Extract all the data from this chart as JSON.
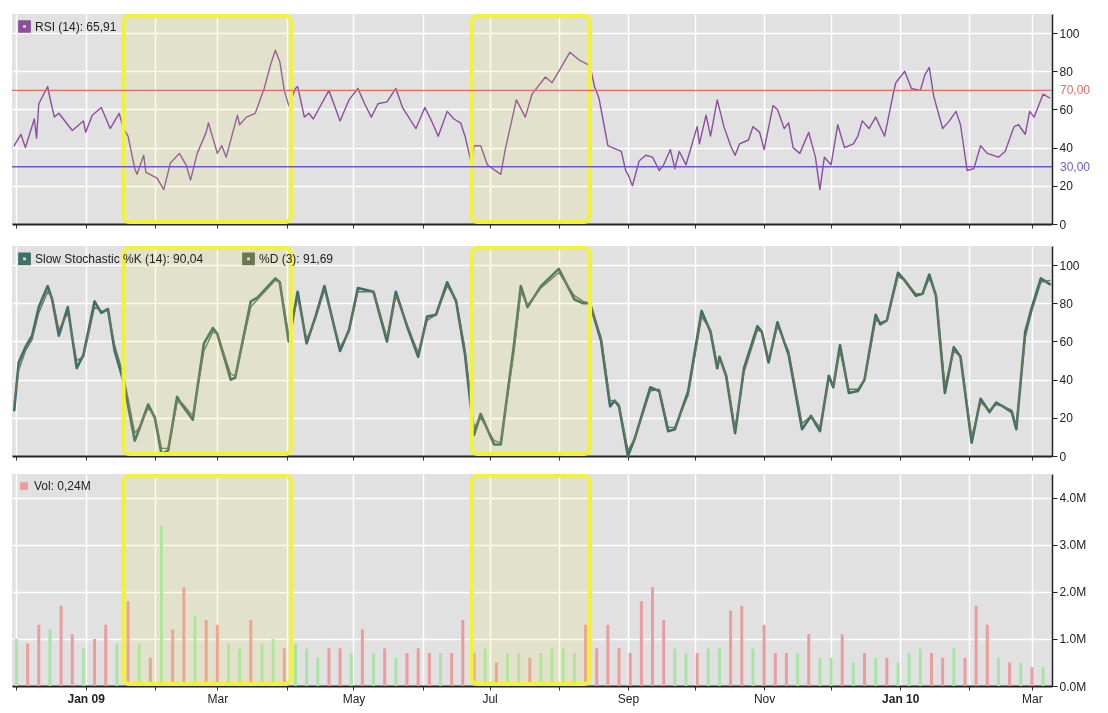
{
  "chart_data": [
    {
      "type": "line",
      "legend": "top left",
      "grid": true,
      "tick_labels": "y",
      "marker": "none",
      "line_style": "solid",
      "xlim": [
        "2008-11-29",
        "2010-03-10"
      ],
      "xticks": [
        {
          "value": "2008-12-01",
          "label": null
        },
        {
          "value": "2009-01-01",
          "label": null
        },
        {
          "value": "2009-02-01",
          "label": null
        },
        {
          "value": "2009-03-01",
          "label": null
        },
        {
          "value": "2009-04-01",
          "label": null
        },
        {
          "value": "2009-05-01",
          "label": null
        },
        {
          "value": "2009-06-01",
          "label": null
        },
        {
          "value": "2009-07-01",
          "label": null
        },
        {
          "value": "2009-08-01",
          "label": null
        },
        {
          "value": "2009-09-01",
          "label": null
        },
        {
          "value": "2009-10-01",
          "label": null
        },
        {
          "value": "2009-11-01",
          "label": null
        },
        {
          "value": "2009-12-01",
          "label": null
        },
        {
          "value": "2010-01-01",
          "label": null
        },
        {
          "value": "2010-02-01",
          "label": null
        },
        {
          "value": "2010-03-01",
          "label": null
        }
      ],
      "ylim": [
        0,
        110
      ],
      "yticks": [
        0,
        20,
        40,
        60,
        80,
        100
      ],
      "bands": [
        {
          "axis": "x",
          "from": "2009-01-18",
          "to": "2009-04-03",
          "color": "#f2f23a"
        },
        {
          "axis": "x",
          "from": "2009-06-23",
          "to": "2009-08-15",
          "color": "#f2f23a"
        }
      ],
      "ref_lines": [
        {
          "axis": "y",
          "value": 70,
          "label": "70,00",
          "color": "#e06b6b"
        },
        {
          "axis": "y",
          "value": 30,
          "label": "30,00",
          "color": "#6a5acd"
        }
      ],
      "series": [
        {
          "name": "RSI (14): 65,91",
          "color": "#8b4f9e",
          "x": [
            "2008-11-30",
            "2008-12-03",
            "2008-12-05",
            "2008-12-09",
            "2008-12-10",
            "2008-12-11",
            "2008-12-15",
            "2008-12-16",
            "2008-12-18",
            "2008-12-20",
            "2008-12-24",
            "2008-12-26",
            "2008-12-31",
            "2009-01-01",
            "2009-01-04",
            "2009-01-08",
            "2009-01-12",
            "2009-01-16",
            "2009-01-18",
            "2009-01-20",
            "2009-01-23",
            "2009-01-24",
            "2009-01-27",
            "2009-01-28",
            "2009-02-02",
            "2009-02-05",
            "2009-02-08",
            "2009-02-12",
            "2009-02-15",
            "2009-02-17",
            "2009-02-20",
            "2009-02-24",
            "2009-02-25",
            "2009-03-01",
            "2009-03-03",
            "2009-03-05",
            "2009-03-10",
            "2009-03-11",
            "2009-03-14",
            "2009-03-18",
            "2009-03-22",
            "2009-03-25",
            "2009-03-27",
            "2009-03-29",
            "2009-03-31",
            "2009-04-02",
            "2009-04-05",
            "2009-04-06",
            "2009-04-09",
            "2009-04-11",
            "2009-04-13",
            "2009-04-20",
            "2009-04-25",
            "2009-04-29",
            "2009-05-03",
            "2009-05-06",
            "2009-05-09",
            "2009-05-12",
            "2009-05-16",
            "2009-05-20",
            "2009-05-23",
            "2009-05-29",
            "2009-06-02",
            "2009-06-05",
            "2009-06-08",
            "2009-06-12",
            "2009-06-15",
            "2009-06-18",
            "2009-06-20",
            "2009-06-23",
            "2009-06-24",
            "2009-06-27",
            "2009-06-30",
            "2009-07-06",
            "2009-07-08",
            "2009-07-13",
            "2009-07-17",
            "2009-07-20",
            "2009-07-26",
            "2009-07-29",
            "2009-08-01",
            "2009-08-06",
            "2009-08-10",
            "2009-08-15",
            "2009-08-17",
            "2009-08-19",
            "2009-08-23",
            "2009-08-25",
            "2009-08-29",
            "2009-08-31",
            "2009-09-01",
            "2009-09-03",
            "2009-09-06",
            "2009-09-09",
            "2009-09-12",
            "2009-09-15",
            "2009-09-17",
            "2009-09-20",
            "2009-09-22",
            "2009-09-24",
            "2009-09-27",
            "2009-10-02",
            "2009-10-03",
            "2009-10-06",
            "2009-10-08",
            "2009-10-11",
            "2009-10-14",
            "2009-10-17",
            "2009-10-19",
            "2009-10-21",
            "2009-10-25",
            "2009-10-27",
            "2009-10-30",
            "2009-11-01",
            "2009-11-05",
            "2009-11-07",
            "2009-11-10",
            "2009-11-12",
            "2009-11-14",
            "2009-11-17",
            "2009-11-21",
            "2009-11-24",
            "2009-11-26",
            "2009-11-28",
            "2009-12-01",
            "2009-12-04",
            "2009-12-07",
            "2009-12-11",
            "2009-12-13",
            "2009-12-15",
            "2009-12-18",
            "2009-12-21",
            "2009-12-25",
            "2009-12-29",
            "2009-12-30",
            "2010-01-03",
            "2010-01-06",
            "2010-01-10",
            "2010-01-12",
            "2010-01-14",
            "2010-01-16",
            "2010-01-20",
            "2010-01-23",
            "2010-01-26",
            "2010-01-28",
            "2010-01-31",
            "2010-02-03",
            "2010-02-06",
            "2010-02-09",
            "2010-02-14",
            "2010-02-17",
            "2010-02-21",
            "2010-02-23",
            "2010-02-26",
            "2010-02-28",
            "2010-03-02",
            "2010-03-06",
            "2010-03-09"
          ],
          "values": [
            41,
            47,
            40,
            55,
            45,
            63,
            72,
            66,
            56,
            58,
            52,
            49,
            54,
            48,
            57,
            61,
            50,
            58,
            50,
            46,
            29,
            26,
            36,
            27,
            24,
            18,
            32,
            37,
            31,
            23,
            37,
            48,
            53,
            37,
            41,
            35,
            57,
            52,
            56,
            58,
            71,
            84,
            91,
            85,
            70,
            62,
            71,
            72,
            56,
            58,
            55,
            70,
            54,
            65,
            71,
            63,
            56,
            63,
            64,
            71,
            61,
            50,
            61,
            54,
            46,
            59,
            55,
            53,
            46,
            31,
            41,
            41,
            31,
            26,
            39,
            65,
            56,
            68,
            77,
            74,
            80,
            90,
            86,
            83,
            72,
            66,
            41,
            40,
            38,
            28,
            26,
            20,
            33,
            36,
            35,
            28,
            31,
            39,
            29,
            38,
            31,
            51,
            42,
            57,
            46,
            65,
            51,
            41,
            36,
            42,
            44,
            51,
            48,
            39,
            62,
            60,
            50,
            53,
            40,
            37,
            48,
            35,
            18,
            35,
            31,
            52,
            40,
            42,
            46,
            54,
            50,
            56,
            46,
            69,
            74,
            80,
            71,
            70,
            78,
            82,
            67,
            50,
            54,
            59,
            52,
            28,
            29,
            41,
            37,
            35,
            38,
            51,
            52,
            47,
            59,
            56,
            68,
            66
          ]
        }
      ]
    },
    {
      "type": "line",
      "legend": "top left",
      "grid": true,
      "tick_labels": "y",
      "marker": "none",
      "line_style": "solid",
      "xlim": [
        "2008-11-29",
        "2010-03-10"
      ],
      "xticks": [
        {
          "value": "2008-12-01",
          "label": null
        },
        {
          "value": "2009-01-01",
          "label": null
        },
        {
          "value": "2009-02-01",
          "label": null
        },
        {
          "value": "2009-03-01",
          "label": null
        },
        {
          "value": "2009-04-01",
          "label": null
        },
        {
          "value": "2009-05-01",
          "label": null
        },
        {
          "value": "2009-06-01",
          "label": null
        },
        {
          "value": "2009-07-01",
          "label": null
        },
        {
          "value": "2009-08-01",
          "label": null
        },
        {
          "value": "2009-09-01",
          "label": null
        },
        {
          "value": "2009-10-01",
          "label": null
        },
        {
          "value": "2009-11-01",
          "label": null
        },
        {
          "value": "2009-12-01",
          "label": null
        },
        {
          "value": "2010-01-01",
          "label": null
        },
        {
          "value": "2010-02-01",
          "label": null
        },
        {
          "value": "2010-03-01",
          "label": null
        }
      ],
      "ylim": [
        0,
        110
      ],
      "yticks": [
        0,
        20,
        40,
        60,
        80,
        100
      ],
      "bands": [
        {
          "axis": "x",
          "from": "2009-01-18",
          "to": "2009-04-03",
          "color": "#f2f23a"
        },
        {
          "axis": "x",
          "from": "2009-06-23",
          "to": "2009-08-15",
          "color": "#f2f23a"
        }
      ],
      "x": [
        "2008-11-30",
        "2008-12-02",
        "2008-12-05",
        "2008-12-08",
        "2008-12-11",
        "2008-12-15",
        "2008-12-17",
        "2008-12-20",
        "2008-12-24",
        "2008-12-28",
        "2008-12-31",
        "2009-01-05",
        "2009-01-08",
        "2009-01-11",
        "2009-01-14",
        "2009-01-18",
        "2009-01-23",
        "2009-01-25",
        "2009-01-29",
        "2009-02-01",
        "2009-02-04",
        "2009-02-07",
        "2009-02-11",
        "2009-02-13",
        "2009-02-18",
        "2009-02-23",
        "2009-02-27",
        "2009-03-01",
        "2009-03-07",
        "2009-03-09",
        "2009-03-16",
        "2009-03-19",
        "2009-03-27",
        "2009-03-29",
        "2009-04-02",
        "2009-04-06",
        "2009-04-10",
        "2009-04-14",
        "2009-04-18",
        "2009-04-25",
        "2009-04-29",
        "2009-05-03",
        "2009-05-10",
        "2009-05-16",
        "2009-05-20",
        "2009-05-25",
        "2009-05-30",
        "2009-06-03",
        "2009-06-07",
        "2009-06-12",
        "2009-06-16",
        "2009-06-20",
        "2009-06-24",
        "2009-06-27",
        "2009-07-03",
        "2009-07-06",
        "2009-07-12",
        "2009-07-15",
        "2009-07-18",
        "2009-07-24",
        "2009-08-01",
        "2009-08-08",
        "2009-08-12",
        "2009-08-15",
        "2009-08-20",
        "2009-08-24",
        "2009-08-26",
        "2009-08-28",
        "2009-09-01",
        "2009-09-04",
        "2009-09-11",
        "2009-09-15",
        "2009-09-19",
        "2009-09-22",
        "2009-09-28",
        "2009-10-04",
        "2009-10-08",
        "2009-10-11",
        "2009-10-12",
        "2009-10-15",
        "2009-10-19",
        "2009-10-23",
        "2009-10-29",
        "2009-10-31",
        "2009-11-03",
        "2009-11-07",
        "2009-11-12",
        "2009-11-18",
        "2009-11-22",
        "2009-11-26",
        "2009-11-30",
        "2009-12-02",
        "2009-12-05",
        "2009-12-09",
        "2009-12-13",
        "2009-12-16",
        "2009-12-21",
        "2009-12-23",
        "2009-12-26",
        "2009-12-31",
        "2010-01-03",
        "2010-01-08",
        "2010-01-11",
        "2010-01-14",
        "2010-01-17",
        "2010-01-21",
        "2010-01-25",
        "2010-01-28",
        "2010-02-02",
        "2010-02-06",
        "2010-02-10",
        "2010-02-13",
        "2010-02-16",
        "2010-02-20",
        "2010-02-22",
        "2010-02-26",
        "2010-03-01",
        "2010-03-05",
        "2010-03-09"
      ],
      "series": [
        {
          "name": "Slow Stochastic %K (14): 90,04",
          "color": "#3f6f6a",
          "values": [
            24,
            49,
            57,
            63,
            78,
            89,
            82,
            63,
            78,
            46,
            53,
            81,
            75,
            77,
            55,
            39,
            8,
            14,
            27,
            20,
            1,
            3,
            31,
            27,
            19,
            59,
            67,
            64,
            40,
            41,
            81,
            83,
            93,
            91,
            60,
            86,
            59,
            73,
            89,
            55,
            66,
            88,
            86,
            60,
            86,
            68,
            52,
            73,
            74,
            91,
            81,
            53,
            11,
            22,
            6,
            6,
            59,
            89,
            78,
            89,
            98,
            82,
            80,
            80,
            60,
            26,
            29,
            26,
            0,
            9,
            36,
            34,
            13,
            14,
            34,
            76,
            65,
            46,
            52,
            42,
            12,
            46,
            68,
            65,
            49,
            70,
            53,
            14,
            21,
            13,
            42,
            36,
            58,
            33,
            34,
            40,
            74,
            69,
            71,
            96,
            92,
            84,
            85,
            95,
            84,
            33,
            57,
            52,
            7,
            30,
            23,
            28,
            26,
            23,
            14,
            65,
            78,
            93,
            90
          ]
        },
        {
          "name": "%D (3): 91,69",
          "color": "#6b7656",
          "values": [
            28,
            45,
            55,
            61,
            75,
            86,
            83,
            66,
            75,
            50,
            52,
            78,
            76,
            76,
            58,
            42,
            12,
            15,
            25,
            21,
            4,
            4,
            28,
            28,
            21,
            55,
            65,
            64,
            43,
            42,
            78,
            82,
            92,
            91,
            63,
            83,
            61,
            72,
            87,
            57,
            65,
            86,
            86,
            62,
            84,
            69,
            54,
            71,
            74,
            89,
            82,
            56,
            15,
            20,
            8,
            7,
            55,
            86,
            79,
            88,
            96,
            84,
            81,
            80,
            62,
            29,
            29,
            27,
            3,
            9,
            34,
            35,
            15,
            15,
            32,
            73,
            66,
            48,
            51,
            43,
            14,
            44,
            66,
            65,
            51,
            68,
            55,
            17,
            21,
            15,
            40,
            37,
            55,
            35,
            35,
            40,
            71,
            70,
            71,
            94,
            92,
            85,
            85,
            93,
            85,
            37,
            55,
            52,
            10,
            28,
            24,
            27,
            26,
            24,
            16,
            62,
            76,
            91,
            92
          ]
        }
      ]
    },
    {
      "type": "bar",
      "legend": "top left",
      "grid": true,
      "xlim": [
        "2008-11-29",
        "2010-03-10"
      ],
      "xticks": [
        {
          "value": "2008-12-01",
          "label": null
        },
        {
          "value": "2009-01-01",
          "label": "Jan 09"
        },
        {
          "value": "2009-02-01",
          "label": null
        },
        {
          "value": "2009-03-01",
          "label": "Mar"
        },
        {
          "value": "2009-04-01",
          "label": null
        },
        {
          "value": "2009-05-01",
          "label": "May"
        },
        {
          "value": "2009-06-01",
          "label": null
        },
        {
          "value": "2009-07-01",
          "label": "Jul"
        },
        {
          "value": "2009-08-01",
          "label": null
        },
        {
          "value": "2009-09-01",
          "label": "Sep"
        },
        {
          "value": "2009-10-01",
          "label": null
        },
        {
          "value": "2009-11-01",
          "label": "Nov"
        },
        {
          "value": "2009-12-01",
          "label": null
        },
        {
          "value": "2010-01-01",
          "label": "Jan 10"
        },
        {
          "value": "2010-02-01",
          "label": null
        },
        {
          "value": "2010-03-01",
          "label": "Mar"
        }
      ],
      "bands": [
        {
          "axis": "x",
          "from": "2009-01-18",
          "to": "2009-04-03",
          "color": "#f2f23a"
        },
        {
          "axis": "x",
          "from": "2009-06-23",
          "to": "2009-08-15",
          "color": "#f2f23a"
        }
      ],
      "ylim": [
        0,
        4.5
      ],
      "yticks": [
        {
          "value": 0,
          "label": "0.0M"
        },
        {
          "value": 1,
          "label": "1.0M"
        },
        {
          "value": 2,
          "label": "2.0M"
        },
        {
          "value": 3,
          "label": "3.0M"
        },
        {
          "value": 4,
          "label": "4.0M"
        }
      ],
      "series": [
        {
          "name": "Vol: 0,24M",
          "color": "#eb9c9c",
          "x": [
            "2008-12-01",
            "2008-12-06",
            "2008-12-11",
            "2008-12-16",
            "2008-12-21",
            "2008-12-26",
            "2008-12-31",
            "2009-01-05",
            "2009-01-10",
            "2009-01-15",
            "2009-01-20",
            "2009-01-25",
            "2009-01-30",
            "2009-02-04",
            "2009-02-09",
            "2009-02-14",
            "2009-02-19",
            "2009-02-24",
            "2009-03-01",
            "2009-03-06",
            "2009-03-11",
            "2009-03-16",
            "2009-03-21",
            "2009-03-26",
            "2009-03-31",
            "2009-04-05",
            "2009-04-10",
            "2009-04-15",
            "2009-04-20",
            "2009-04-25",
            "2009-04-30",
            "2009-05-05",
            "2009-05-10",
            "2009-05-15",
            "2009-05-20",
            "2009-05-25",
            "2009-05-30",
            "2009-06-04",
            "2009-06-09",
            "2009-06-14",
            "2009-06-19",
            "2009-06-24",
            "2009-06-29",
            "2009-07-04",
            "2009-07-09",
            "2009-07-14",
            "2009-07-19",
            "2009-07-24",
            "2009-07-29",
            "2009-08-03",
            "2009-08-08",
            "2009-08-13",
            "2009-08-18",
            "2009-08-23",
            "2009-08-28",
            "2009-09-02",
            "2009-09-07",
            "2009-09-12",
            "2009-09-17",
            "2009-09-22",
            "2009-09-27",
            "2009-10-02",
            "2009-10-07",
            "2009-10-12",
            "2009-10-17",
            "2009-10-22",
            "2009-10-27",
            "2009-11-01",
            "2009-11-06",
            "2009-11-11",
            "2009-11-16",
            "2009-11-21",
            "2009-11-26",
            "2009-12-01",
            "2009-12-06",
            "2009-12-11",
            "2009-12-16",
            "2009-12-21",
            "2009-12-26",
            "2009-12-31",
            "2010-01-05",
            "2010-01-10",
            "2010-01-15",
            "2010-01-20",
            "2010-01-25",
            "2010-01-30",
            "2010-02-04",
            "2010-02-09",
            "2010-02-14",
            "2010-02-19",
            "2010-02-24",
            "2010-03-01",
            "2010-03-06"
          ],
          "values": [
            1.0,
            0.9,
            1.3,
            1.2,
            1.7,
            1.1,
            0.8,
            1.0,
            1.3,
            0.9,
            1.8,
            0.9,
            0.6,
            3.4,
            1.2,
            2.1,
            1.5,
            1.4,
            1.3,
            0.9,
            0.8,
            1.4,
            0.9,
            1.0,
            0.8,
            0.9,
            0.8,
            0.6,
            0.8,
            0.8,
            0.7,
            1.2,
            0.7,
            0.8,
            0.6,
            0.7,
            0.8,
            0.7,
            0.7,
            0.7,
            1.4,
            0.7,
            0.8,
            0.5,
            0.7,
            0.7,
            0.6,
            0.7,
            0.8,
            0.8,
            0.7,
            1.3,
            0.8,
            1.3,
            0.8,
            0.7,
            1.8,
            2.1,
            1.4,
            0.8,
            0.7,
            0.7,
            0.8,
            0.8,
            1.6,
            1.7,
            0.8,
            1.3,
            0.7,
            0.7,
            0.7,
            1.1,
            0.6,
            0.6,
            1.1,
            0.5,
            0.7,
            0.6,
            0.6,
            0.5,
            0.7,
            0.8,
            0.7,
            0.6,
            0.8,
            0.6,
            1.7,
            1.3,
            0.6,
            0.5,
            0.5,
            0.4,
            0.4
          ],
          "colors": [
            "#a8e4a8",
            "#eb9c9c",
            "#eb9c9c",
            "#a8e4a8",
            "#eb9c9c",
            "#eb9c9c",
            "#a8e4a8",
            "#eb9c9c",
            "#eb9c9c",
            "#a8e4a8",
            "#eb9c9c",
            "#a8e4a8",
            "#eb9c9c",
            "#a8e4a8",
            "#eb9c9c",
            "#eb9c9c",
            "#a8e4a8",
            "#eb9c9c",
            "#eb9c9c",
            "#a8e4a8",
            "#a8e4a8",
            "#eb9c9c",
            "#a8e4a8",
            "#a8e4a8",
            "#eb9c9c",
            "#a8e4a8",
            "#a8e4a8",
            "#a8e4a8",
            "#eb9c9c",
            "#eb9c9c",
            "#a8e4a8",
            "#eb9c9c",
            "#a8e4a8",
            "#eb9c9c",
            "#a8e4a8",
            "#eb9c9c",
            "#eb9c9c",
            "#eb9c9c",
            "#a8e4a8",
            "#eb9c9c",
            "#eb9c9c",
            "#eb9c9c",
            "#a8e4a8",
            "#eb9c9c",
            "#a8e4a8",
            "#a8e4a8",
            "#eb9c9c",
            "#a8e4a8",
            "#a8e4a8",
            "#a8e4a8",
            "#a8e4a8",
            "#eb9c9c",
            "#eb9c9c",
            "#eb9c9c",
            "#eb9c9c",
            "#eb9c9c",
            "#eb9c9c",
            "#eb9c9c",
            "#eb9c9c",
            "#a8e4a8",
            "#a8e4a8",
            "#eb9c9c",
            "#a8e4a8",
            "#a8e4a8",
            "#eb9c9c",
            "#eb9c9c",
            "#a8e4a8",
            "#eb9c9c",
            "#eb9c9c",
            "#eb9c9c",
            "#a8e4a8",
            "#eb9c9c",
            "#a8e4a8",
            "#a8e4a8",
            "#eb9c9c",
            "#a8e4a8",
            "#eb9c9c",
            "#a8e4a8",
            "#eb9c9c",
            "#a8e4a8",
            "#a8e4a8",
            "#a8e4a8",
            "#eb9c9c",
            "#eb9c9c",
            "#a8e4a8",
            "#eb9c9c",
            "#eb9c9c",
            "#eb9c9c",
            "#a8e4a8",
            "#eb9c9c",
            "#a8e4a8",
            "#eb9c9c",
            "#a8e4a8"
          ]
        }
      ]
    }
  ]
}
